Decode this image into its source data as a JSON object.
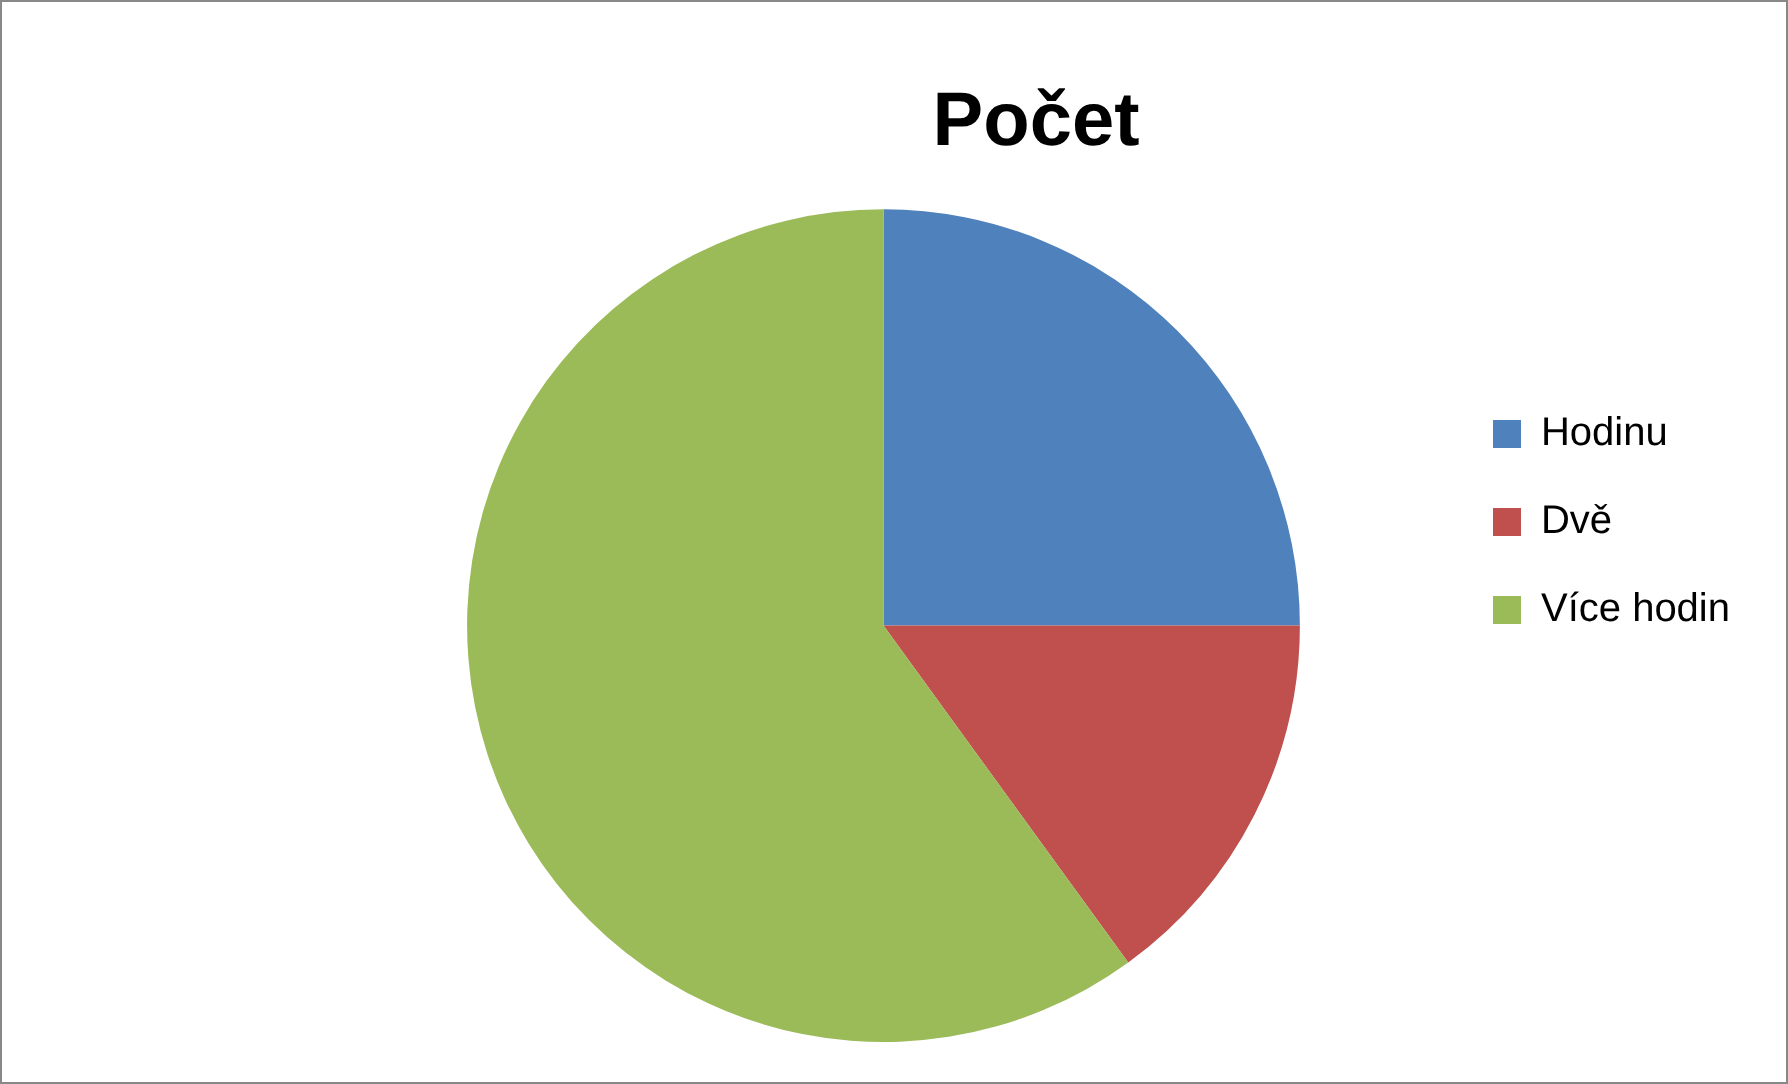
{
  "chart_data": {
    "type": "pie",
    "title": "Počet",
    "categories": [
      "Hodinu",
      "Dvě",
      "Více hodin"
    ],
    "values": [
      25,
      15,
      60
    ],
    "colors": [
      "#4f81bd",
      "#c0504d",
      "#9bbb59"
    ],
    "legend": "right"
  }
}
